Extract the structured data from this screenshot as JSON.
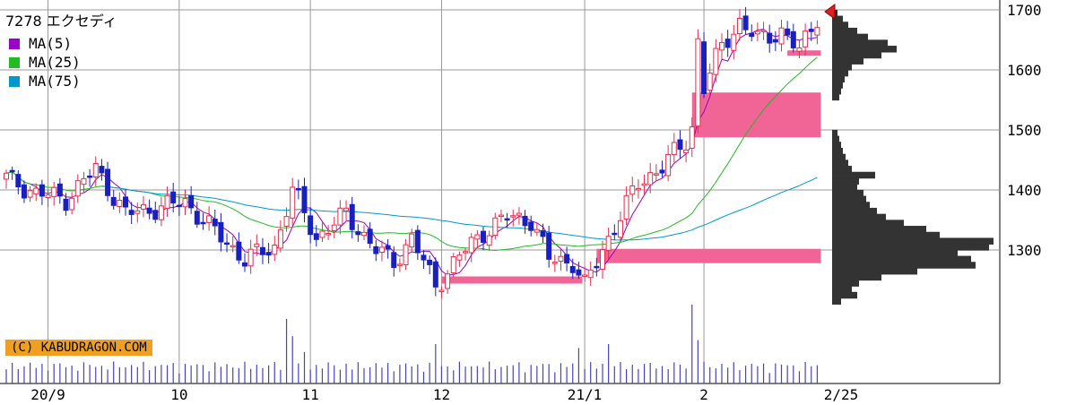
{
  "title": "7278 エクセディ",
  "legend": [
    {
      "label": "MA(5)",
      "color": "#9900cc"
    },
    {
      "label": "MA(25)",
      "color": "#22bb22"
    },
    {
      "label": "MA(75)",
      "color": "#0099cc"
    }
  ],
  "copyright": "(C) KABUDRAGON.COM",
  "colors": {
    "up": "#e0304a",
    "down": "#1820c0",
    "profile": "#333333",
    "bands": "#f06496",
    "band_blue": "#6699dd",
    "grid": "#999999",
    "volume": "#4444bb"
  },
  "chart_data": {
    "type": "candlestick",
    "y_ticks": [
      1300,
      1400,
      1500,
      1600,
      1700
    ],
    "ylim": [
      1180,
      1718
    ],
    "x_ticks": [
      {
        "label": "20/9",
        "index": 7
      },
      {
        "label": "10",
        "index": 29
      },
      {
        "label": "11",
        "index": 51
      },
      {
        "label": "12",
        "index": 73
      },
      {
        "label": "21/1",
        "index": 97
      },
      {
        "label": "2",
        "index": 117
      },
      {
        "label": "2/25",
        "index": 140
      }
    ],
    "count": 137,
    "anchors": [
      {
        "i": 0,
        "p": 1420
      },
      {
        "i": 5,
        "p": 1395
      },
      {
        "i": 10,
        "p": 1385
      },
      {
        "i": 15,
        "p": 1435
      },
      {
        "i": 20,
        "p": 1360
      },
      {
        "i": 25,
        "p": 1370
      },
      {
        "i": 30,
        "p": 1380
      },
      {
        "i": 35,
        "p": 1330
      },
      {
        "i": 40,
        "p": 1285
      },
      {
        "i": 45,
        "p": 1305
      },
      {
        "i": 48,
        "p": 1400
      },
      {
        "i": 52,
        "p": 1320
      },
      {
        "i": 57,
        "p": 1360
      },
      {
        "i": 62,
        "p": 1300
      },
      {
        "i": 65,
        "p": 1280
      },
      {
        "i": 68,
        "p": 1320
      },
      {
        "i": 72,
        "p": 1240
      },
      {
        "i": 76,
        "p": 1290
      },
      {
        "i": 80,
        "p": 1330
      },
      {
        "i": 84,
        "p": 1355
      },
      {
        "i": 88,
        "p": 1350
      },
      {
        "i": 91,
        "p": 1285
      },
      {
        "i": 95,
        "p": 1280
      },
      {
        "i": 97,
        "p": 1240
      },
      {
        "i": 99,
        "p": 1280
      },
      {
        "i": 102,
        "p": 1340
      },
      {
        "i": 106,
        "p": 1410
      },
      {
        "i": 110,
        "p": 1440
      },
      {
        "i": 114,
        "p": 1480
      },
      {
        "i": 115,
        "p": 1505
      },
      {
        "i": 116,
        "p": 1650
      },
      {
        "i": 117,
        "p": 1570
      },
      {
        "i": 120,
        "p": 1640
      },
      {
        "i": 123,
        "p": 1680
      },
      {
        "i": 126,
        "p": 1650
      },
      {
        "i": 130,
        "p": 1665
      },
      {
        "i": 133,
        "p": 1630
      },
      {
        "i": 136,
        "p": 1690
      }
    ],
    "volumes_note": "relative volumes, 0-1",
    "volume_spikes": [
      {
        "i": 47,
        "v": 0.82
      },
      {
        "i": 48,
        "v": 0.6
      },
      {
        "i": 72,
        "v": 0.5
      },
      {
        "i": 96,
        "v": 0.45
      },
      {
        "i": 115,
        "v": 1.0
      },
      {
        "i": 116,
        "v": 0.55
      },
      {
        "i": 101,
        "v": 0.5
      },
      {
        "i": 50,
        "v": 0.4
      }
    ],
    "ma_series": [
      {
        "label": "MA(5)",
        "color": "#9900cc",
        "period": 5
      },
      {
        "label": "MA(25)",
        "color": "#22bb22",
        "period": 25
      },
      {
        "label": "MA(75)",
        "color": "#0099cc",
        "period": 75
      }
    ],
    "price_bands": [
      {
        "from_i": 73,
        "to_i": 96,
        "price": 1250,
        "height": 8
      },
      {
        "from_i": 99,
        "to_i": 136,
        "price": 1290,
        "height": 16
      },
      {
        "from_i": 115,
        "to_i": 136,
        "price": 1525,
        "height": 50
      },
      {
        "from_i": 131,
        "to_i": 136,
        "price": 1628,
        "height": 6
      }
    ],
    "volume_profile": [
      {
        "p": 1215,
        "w": 10
      },
      {
        "p": 1225,
        "w": 28
      },
      {
        "p": 1235,
        "w": 22
      },
      {
        "p": 1245,
        "w": 30
      },
      {
        "p": 1255,
        "w": 55
      },
      {
        "p": 1265,
        "w": 95
      },
      {
        "p": 1275,
        "w": 160
      },
      {
        "p": 1285,
        "w": 155
      },
      {
        "p": 1295,
        "w": 140
      },
      {
        "p": 1305,
        "w": 175
      },
      {
        "p": 1315,
        "w": 180
      },
      {
        "p": 1325,
        "w": 120
      },
      {
        "p": 1335,
        "w": 105
      },
      {
        "p": 1345,
        "w": 80
      },
      {
        "p": 1355,
        "w": 60
      },
      {
        "p": 1365,
        "w": 50
      },
      {
        "p": 1375,
        "w": 42
      },
      {
        "p": 1385,
        "w": 38
      },
      {
        "p": 1395,
        "w": 35
      },
      {
        "p": 1405,
        "w": 28
      },
      {
        "p": 1415,
        "w": 30
      },
      {
        "p": 1425,
        "w": 48
      },
      {
        "p": 1435,
        "w": 22
      },
      {
        "p": 1445,
        "w": 18
      },
      {
        "p": 1455,
        "w": 15
      },
      {
        "p": 1465,
        "w": 12
      },
      {
        "p": 1475,
        "w": 10
      },
      {
        "p": 1485,
        "w": 8
      },
      {
        "p": 1495,
        "w": 6
      },
      {
        "p": 1555,
        "w": 8
      },
      {
        "p": 1565,
        "w": 10
      },
      {
        "p": 1575,
        "w": 12
      },
      {
        "p": 1585,
        "w": 14
      },
      {
        "p": 1595,
        "w": 18
      },
      {
        "p": 1605,
        "w": 22
      },
      {
        "p": 1615,
        "w": 35
      },
      {
        "p": 1625,
        "w": 55
      },
      {
        "p": 1635,
        "w": 72
      },
      {
        "p": 1645,
        "w": 62
      },
      {
        "p": 1655,
        "w": 40
      },
      {
        "p": 1665,
        "w": 28
      },
      {
        "p": 1675,
        "w": 18
      },
      {
        "p": 1685,
        "w": 12
      },
      {
        "p": 1695,
        "w": 6
      }
    ],
    "last_marker_price": 1700
  }
}
